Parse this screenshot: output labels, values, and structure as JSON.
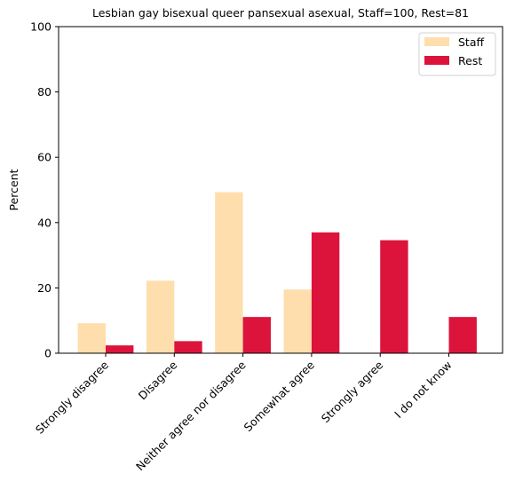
{
  "chart_data": {
    "type": "bar",
    "title": "Lesbian gay bisexual queer pansexual asexual, Staff=100, Rest=81",
    "xlabel": "",
    "ylabel": "Percent",
    "ylim": [
      0,
      100
    ],
    "yticks": [
      0,
      20,
      40,
      60,
      80,
      100
    ],
    "grid": false,
    "legend_position": "top-right",
    "categories": [
      "Strongly disagree",
      "Disagree",
      "Neither agree nor disagree",
      "Somewhat agree",
      "Strongly agree",
      "I do not know"
    ],
    "series": [
      {
        "name": "Staff",
        "color": "#FFDEAD",
        "values": [
          9.2,
          22.2,
          49.3,
          19.5,
          0,
          0
        ]
      },
      {
        "name": "Rest",
        "color": "#DC143C",
        "values": [
          2.4,
          3.7,
          11.1,
          37.0,
          34.6,
          11.1
        ]
      }
    ]
  }
}
